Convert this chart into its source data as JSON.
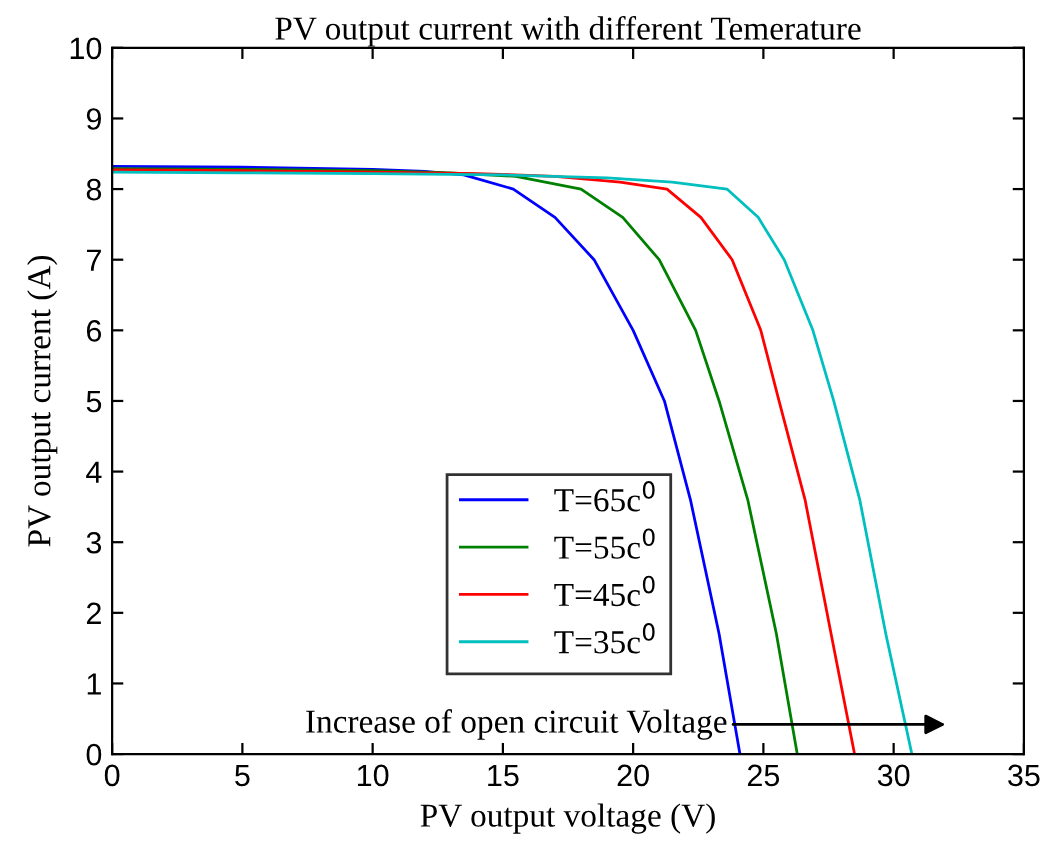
{
  "chart_data": {
    "type": "line",
    "title": "PV output current with different Temerature",
    "xlabel": "PV output voltage (V)",
    "ylabel": "PV output current (A)",
    "xlim": [
      0,
      35
    ],
    "ylim": [
      0,
      10
    ],
    "xticks": [
      0,
      5,
      10,
      15,
      20,
      25,
      30,
      35
    ],
    "yticks": [
      0,
      1,
      2,
      3,
      4,
      5,
      6,
      7,
      8,
      9,
      10
    ],
    "grid": false,
    "legend": "bottom",
    "marker": "none",
    "line_style": "solid",
    "annotations": [
      "Increase of open circuit Voltage"
    ],
    "series": [
      {
        "name": "T=65c$^{0}$",
        "color": "#0000ff",
        "x": [
          0,
          5,
          10,
          12,
          13.5,
          15.4,
          17,
          18.5,
          20,
          21.2,
          22.2,
          23.3,
          24.1
        ],
        "values": [
          8.32,
          8.31,
          8.28,
          8.25,
          8.2,
          8.0,
          7.6,
          7.0,
          6.0,
          5.0,
          3.6,
          1.7,
          0
        ]
      },
      {
        "name": "T=55c$^{0}$",
        "color": "#008000",
        "x": [
          0,
          5,
          10,
          13,
          15.5,
          18,
          19.6,
          21.0,
          22.4,
          23.3,
          24.4,
          25.5,
          26.3
        ],
        "values": [
          8.29,
          8.28,
          8.26,
          8.23,
          8.18,
          8.0,
          7.6,
          7.0,
          6.0,
          5.0,
          3.6,
          1.7,
          0
        ]
      },
      {
        "name": "T=45c$^{0}$",
        "color": "#ff0000",
        "x": [
          0,
          5,
          10,
          14,
          17,
          19.5,
          21.3,
          22.6,
          23.8,
          24.9,
          25.6,
          26.6,
          27.6,
          28.5
        ],
        "values": [
          8.27,
          8.26,
          8.24,
          8.22,
          8.18,
          8.1,
          8.0,
          7.6,
          7.0,
          6.0,
          5.0,
          3.6,
          1.7,
          0
        ]
      },
      {
        "name": "T=35c$^{0}$",
        "color": "#00bfbf",
        "x": [
          0,
          5,
          10,
          15,
          19,
          21.5,
          23.6,
          24.8,
          25.8,
          26.9,
          27.7,
          28.7,
          29.7,
          30.7
        ],
        "values": [
          8.24,
          8.23,
          8.22,
          8.2,
          8.16,
          8.1,
          8.0,
          7.6,
          7.0,
          6.0,
          5.0,
          3.6,
          1.7,
          0
        ]
      }
    ]
  }
}
